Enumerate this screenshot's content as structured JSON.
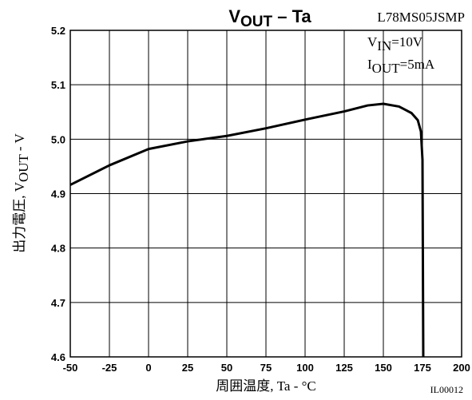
{
  "chart_data": {
    "type": "line",
    "title": {
      "main": "V",
      "sub": "OUT",
      "rest": " – Ta"
    },
    "part_number": "L78MS05JSMP",
    "conditions": [
      {
        "main": "V",
        "sub": "IN",
        "rest": "=10V"
      },
      {
        "main": "I",
        "sub": "OUT",
        "rest": "=5mA"
      }
    ],
    "y_label": {
      "main": "出力電圧, V",
      "sub": "OUT",
      "rest": " - V"
    },
    "x_label": "周囲温度, Ta - °C",
    "figure_id": "IL00012",
    "x": [
      -50,
      -25,
      0,
      25,
      50,
      75,
      100,
      125,
      140,
      150,
      160,
      168,
      172,
      174,
      175,
      175.5
    ],
    "series": [
      {
        "name": "VOUT",
        "color": "#000000",
        "values": [
          4.916,
          4.952,
          4.982,
          4.996,
          5.006,
          5.02,
          5.036,
          5.051,
          5.062,
          5.065,
          5.06,
          5.048,
          5.035,
          5.014,
          4.962,
          4.6
        ]
      }
    ],
    "xlim": [
      -50,
      200
    ],
    "xticks": [
      -50,
      -25,
      0,
      25,
      50,
      75,
      100,
      125,
      150,
      175,
      200
    ],
    "ylim": [
      4.6,
      5.2
    ],
    "yticks": [
      4.6,
      4.7,
      4.8,
      4.9,
      {
        "value": 5.0,
        "label": "5.0"
      },
      5.1,
      5.2
    ],
    "grid": true
  }
}
